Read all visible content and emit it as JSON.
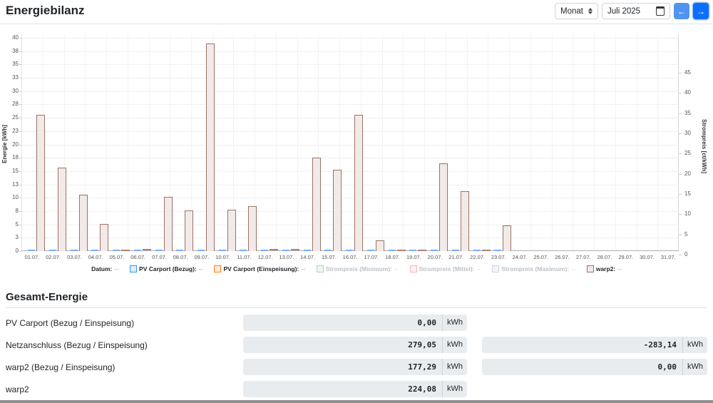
{
  "header": {
    "title": "Energiebilanz",
    "interval_select": "Monat",
    "date_value": "Juli 2025",
    "prev_label": "←",
    "next_label": "→"
  },
  "chart": {
    "y_left": {
      "title": "Energie [kWh]",
      "max": 40,
      "ticks": [
        {
          "v": 40,
          "label": "40"
        },
        {
          "v": 37.5,
          "label": "38"
        },
        {
          "v": 35,
          "label": "35"
        },
        {
          "v": 32.5,
          "label": "33"
        },
        {
          "v": 30,
          "label": "30"
        },
        {
          "v": 27.5,
          "label": "28"
        },
        {
          "v": 25,
          "label": "25"
        },
        {
          "v": 22.5,
          "label": "23"
        },
        {
          "v": 20,
          "label": "20"
        },
        {
          "v": 17.5,
          "label": "18"
        },
        {
          "v": 15,
          "label": "15"
        },
        {
          "v": 12.5,
          "label": "13"
        },
        {
          "v": 10,
          "label": "10"
        },
        {
          "v": 7.5,
          "label": "8"
        },
        {
          "v": 5,
          "label": "5"
        },
        {
          "v": 2.5,
          "label": "3"
        },
        {
          "v": 0,
          "label": "0"
        }
      ]
    },
    "y_right": {
      "title": "Strompreis [ct/kWh]",
      "max": 45,
      "ticks": [
        {
          "v": 45,
          "label": "45"
        },
        {
          "v": 40,
          "label": "40"
        },
        {
          "v": 35,
          "label": "35"
        },
        {
          "v": 30,
          "label": "30"
        },
        {
          "v": 25,
          "label": "25"
        },
        {
          "v": 20,
          "label": "20"
        },
        {
          "v": 15,
          "label": "15"
        },
        {
          "v": 10,
          "label": "10"
        },
        {
          "v": 5,
          "label": "5"
        },
        {
          "v": 0,
          "label": "0"
        }
      ]
    },
    "legend": [
      {
        "label": "Datum:",
        "value": "--",
        "swatch": null,
        "muted": false
      },
      {
        "label": "PV Carport (Bezug):",
        "value": "--",
        "swatch": {
          "border": "#3498f3",
          "fill": "#dcedff"
        },
        "muted": false
      },
      {
        "label": "PV Carport (Einspeisung):",
        "value": "--",
        "swatch": {
          "border": "#fd7e14",
          "fill": "#ffe8d9"
        },
        "muted": false
      },
      {
        "label": "Strompreis (Minimum):",
        "value": "--",
        "swatch": {
          "border": "#a9d7b8",
          "fill": "#eef9f1"
        },
        "muted": true
      },
      {
        "label": "Strompreis (Mittel):",
        "value": "--",
        "swatch": {
          "border": "#f3b7bc",
          "fill": "#fdf1f2"
        },
        "muted": true
      },
      {
        "label": "Strompreis (Maximum):",
        "value": "--",
        "swatch": {
          "border": "#cdd0e5",
          "fill": "#f4f5fb"
        },
        "muted": true
      },
      {
        "label": "warp2:",
        "value": "--",
        "swatch": {
          "border": "#9c7265",
          "fill": "#f2eae8"
        },
        "muted": false
      }
    ],
    "chart_data": {
      "type": "bar",
      "categories": [
        "01.07.",
        "02.07.",
        "03.07.",
        "04.07.",
        "05.07.",
        "06.07.",
        "07.07.",
        "08.07.",
        "09.07.",
        "10.07.",
        "11.07.",
        "12.07.",
        "13.07.",
        "14.07.",
        "15.07.",
        "16.07.",
        "17.07.",
        "18.07.",
        "19.07.",
        "20.07.",
        "21.07.",
        "22.07.",
        "23.07.",
        "24.07.",
        "25.07.",
        "26.07.",
        "27.07.",
        "28.07.",
        "29.07.",
        "30.07.",
        "31.07."
      ],
      "series": [
        {
          "name": "PV Carport (Bezug)",
          "color": "#79aefb",
          "values": [
            0,
            0,
            0,
            0,
            0,
            0,
            0,
            0,
            0,
            0,
            0,
            0,
            0,
            0,
            0,
            0,
            0,
            0,
            0,
            0,
            0,
            0,
            0,
            null,
            null,
            null,
            null,
            null,
            null,
            null,
            null
          ]
        },
        {
          "name": "warp2",
          "border": "#9c7265",
          "fill": "#f2eae8",
          "dash_color": "#ab8378",
          "values": [
            25.6,
            15.7,
            10.6,
            5.1,
            0,
            0.3,
            10.2,
            7.6,
            38.9,
            7.7,
            8.5,
            0.3,
            0.3,
            17.5,
            15.3,
            25.5,
            2.0,
            0,
            0,
            16.5,
            11.3,
            0,
            4.8,
            null,
            null,
            null,
            null,
            null,
            null,
            null,
            null
          ]
        }
      ],
      "xlabel": "Datum",
      "ylabel": "Energie [kWh]",
      "y2label": "Strompreis [ct/kWh]",
      "ylim": [
        0,
        40
      ],
      "y2lim": [
        0,
        45
      ],
      "grid": true,
      "legend_position": "bottom"
    }
  },
  "totals": {
    "heading": "Gesamt-Energie",
    "rows": [
      {
        "label": "PV Carport (Bezug / Einspeisung)",
        "left": {
          "value": "0,00",
          "unit": "kWh"
        },
        "right": null
      },
      {
        "label": "Netzanschluss (Bezug / Einspeisung)",
        "left": {
          "value": "279,05",
          "unit": "kWh"
        },
        "right": {
          "value": "-283,14",
          "unit": "kWh"
        }
      },
      {
        "label": "warp2 (Bezug / Einspeisung)",
        "left": {
          "value": "177,29",
          "unit": "kWh"
        },
        "right": {
          "value": "0,00",
          "unit": "kWh"
        }
      },
      {
        "label": "warp2",
        "left": {
          "value": "224,08",
          "unit": "kWh"
        },
        "right": null
      }
    ]
  }
}
